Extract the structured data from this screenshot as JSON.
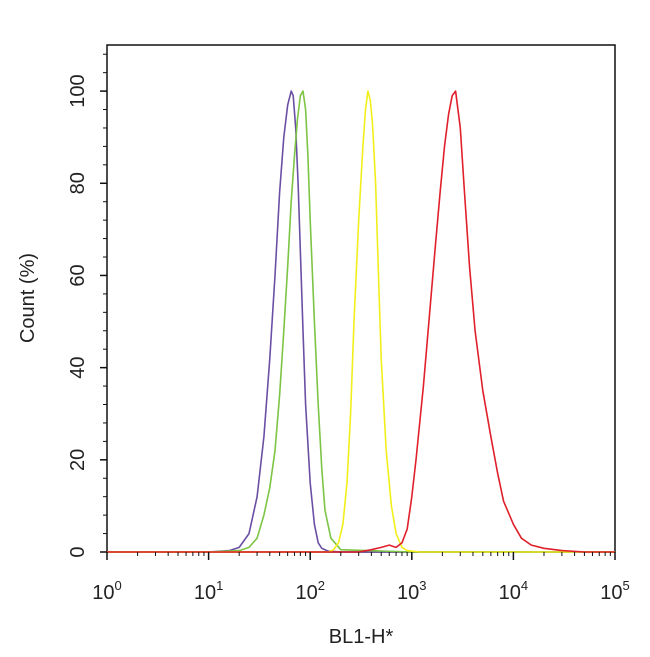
{
  "chart_data": {
    "type": "line",
    "title": "",
    "xlabel": "BL1-H*",
    "ylabel": "Count  (%)",
    "x_scale": "log",
    "xlim": [
      1,
      100000
    ],
    "ylim": [
      0,
      110
    ],
    "x_ticks": [
      {
        "base": "10",
        "exp": "0",
        "value": 1
      },
      {
        "base": "10",
        "exp": "1",
        "value": 10
      },
      {
        "base": "10",
        "exp": "2",
        "value": 100
      },
      {
        "base": "10",
        "exp": "3",
        "value": 1000
      },
      {
        "base": "10",
        "exp": "4",
        "value": 10000
      },
      {
        "base": "10",
        "exp": "5",
        "value": 100000
      }
    ],
    "y_ticks": [
      "0",
      "20",
      "40",
      "60",
      "80",
      "100"
    ],
    "grid": false,
    "legend": "none",
    "series": [
      {
        "color": "#6a4fa3",
        "x": [
          1,
          10,
          16,
          20,
          25,
          30,
          35,
          40,
          45,
          50,
          55,
          60,
          65,
          68,
          72,
          76,
          80,
          85,
          90,
          100,
          110,
          120,
          130,
          150,
          200,
          1000,
          100000
        ],
        "y": [
          0,
          0,
          0.3,
          1,
          4,
          12,
          25,
          42,
          60,
          78,
          90,
          97,
          100,
          99,
          92,
          80,
          65,
          48,
          32,
          15,
          6,
          2,
          0.8,
          0.2,
          0,
          0,
          0
        ]
      },
      {
        "color": "#7cc444",
        "x": [
          1,
          10,
          20,
          25,
          30,
          35,
          40,
          45,
          50,
          55,
          60,
          65,
          70,
          75,
          80,
          85,
          90,
          95,
          100,
          110,
          120,
          130,
          140,
          160,
          200,
          1000,
          100000
        ],
        "y": [
          0,
          0,
          0.3,
          1,
          3,
          8,
          14,
          22,
          34,
          48,
          62,
          76,
          86,
          94,
          99,
          100,
          96,
          86,
          72,
          50,
          32,
          18,
          9,
          3,
          0.5,
          0,
          0
        ]
      },
      {
        "color": "#f2ee1a",
        "x": [
          1,
          10,
          150,
          170,
          190,
          210,
          230,
          250,
          270,
          300,
          330,
          350,
          370,
          390,
          410,
          440,
          470,
          500,
          560,
          630,
          700,
          800,
          900,
          1200,
          100000
        ],
        "y": [
          0,
          0,
          0,
          0.5,
          2,
          6,
          15,
          30,
          50,
          72,
          88,
          96,
          100,
          98,
          93,
          80,
          60,
          42,
          22,
          10,
          4,
          1,
          0.3,
          0,
          0
        ]
      },
      {
        "color": "#e0202a",
        "x": [
          1,
          100,
          300,
          400,
          500,
          600,
          700,
          800,
          900,
          1000,
          1100,
          1300,
          1500,
          1700,
          1900,
          2100,
          2300,
          2500,
          2700,
          3000,
          3300,
          3700,
          4200,
          5000,
          6000,
          7000,
          8000,
          10000,
          12000,
          15000,
          20000,
          30000,
          50000,
          100000
        ],
        "y": [
          0,
          0,
          0,
          0.5,
          1,
          1.5,
          1,
          2,
          5,
          12,
          20,
          36,
          52,
          66,
          78,
          88,
          95,
          99,
          100,
          92,
          78,
          62,
          48,
          35,
          25,
          17,
          11,
          6,
          3,
          1.5,
          0.8,
          0.3,
          0,
          0
        ]
      }
    ]
  }
}
